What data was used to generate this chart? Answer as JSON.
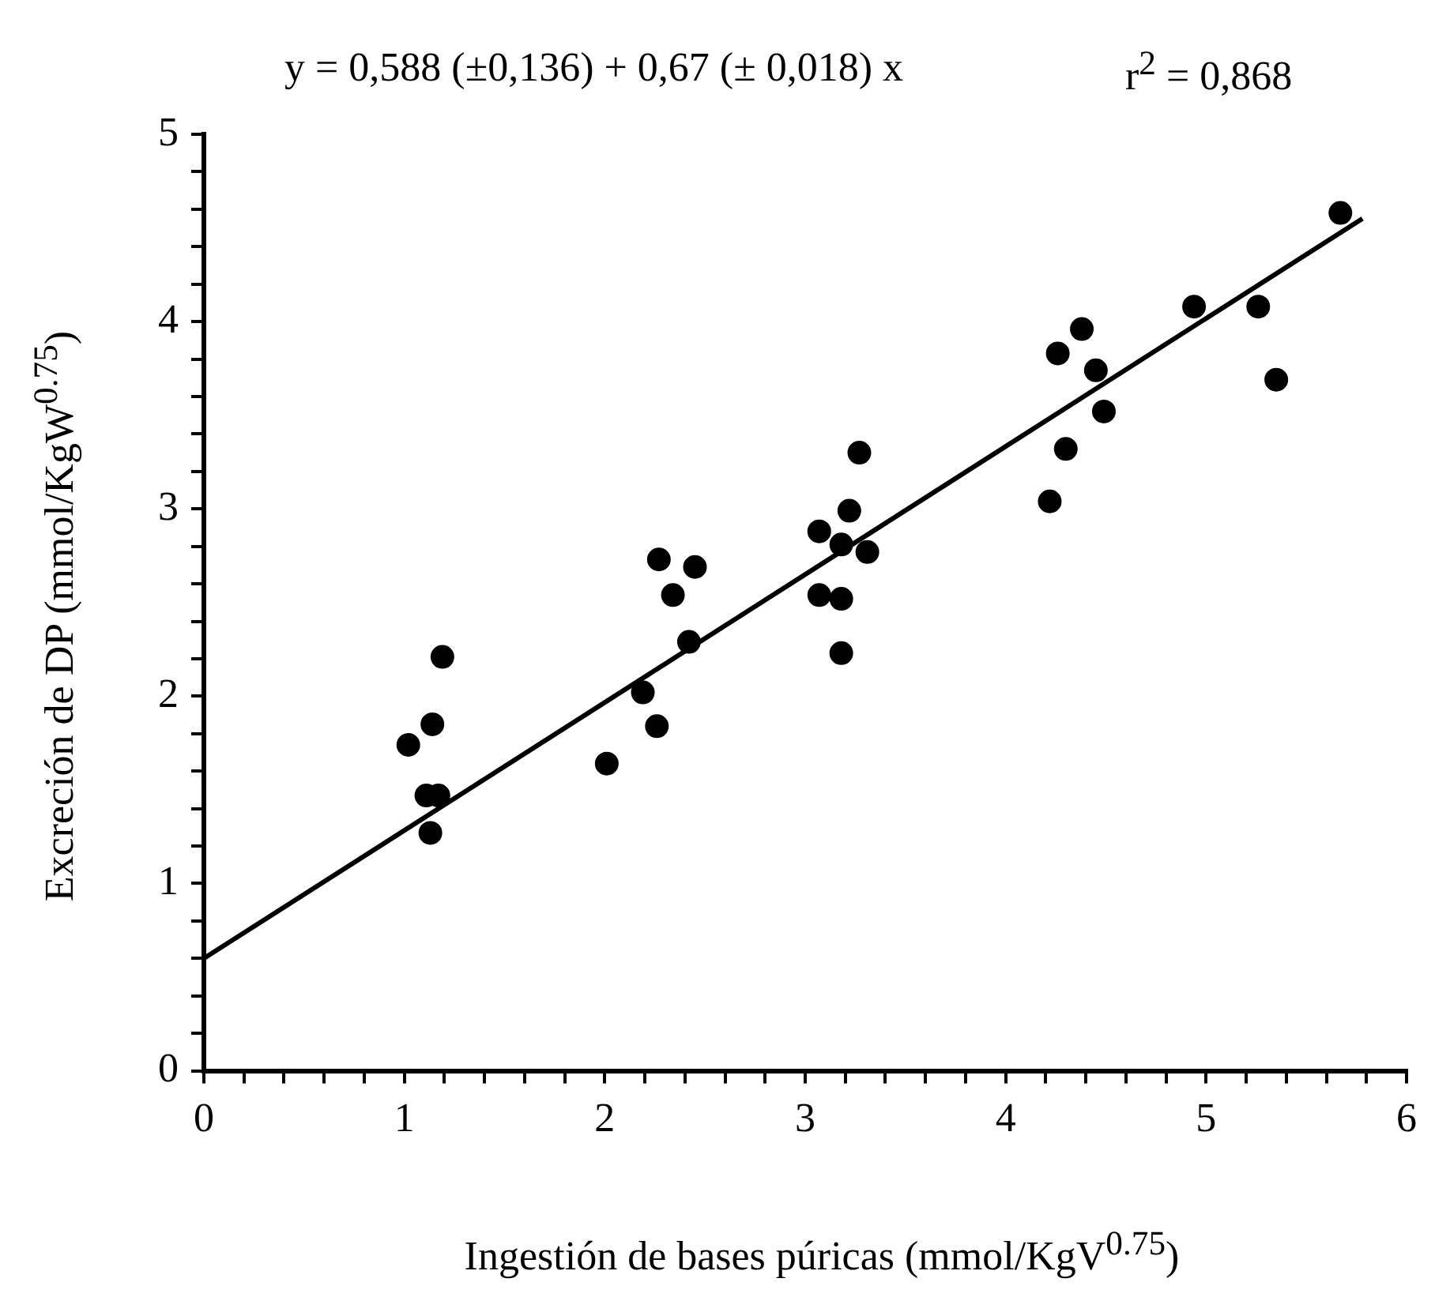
{
  "chart_data": {
    "type": "scatter",
    "xlabel": "Ingestión de bases púricas (mmol/KgV$^{0.75}$)",
    "ylabel": "Excreción de DP (mmol/KgW$^{0.75}$)",
    "annotations": [
      "y = 0,588 (±0,136) + 0,67 (± 0,018) x",
      "r$^{2}$ = 0,868"
    ],
    "grid": false,
    "legend": false,
    "xlim": [
      0,
      6
    ],
    "ylim": [
      0,
      5
    ],
    "xticks": [
      0,
      {
        "value": 0.2,
        "label": null
      },
      {
        "value": 0.4,
        "label": null
      },
      {
        "value": 0.6,
        "label": null
      },
      {
        "value": 0.8,
        "label": null
      },
      1,
      {
        "value": 1.2,
        "label": null
      },
      {
        "value": 1.4,
        "label": null
      },
      {
        "value": 1.6,
        "label": null
      },
      {
        "value": 1.8,
        "label": null
      },
      2,
      {
        "value": 2.2,
        "label": null
      },
      {
        "value": 2.4,
        "label": null
      },
      {
        "value": 2.6,
        "label": null
      },
      {
        "value": 2.8,
        "label": null
      },
      3,
      {
        "value": 3.2,
        "label": null
      },
      {
        "value": 3.4,
        "label": null
      },
      {
        "value": 3.6,
        "label": null
      },
      {
        "value": 3.8,
        "label": null
      },
      4,
      {
        "value": 4.2,
        "label": null
      },
      {
        "value": 4.4,
        "label": null
      },
      {
        "value": 4.6,
        "label": null
      },
      {
        "value": 4.8,
        "label": null
      },
      5,
      {
        "value": 5.2,
        "label": null
      },
      {
        "value": 5.4,
        "label": null
      },
      {
        "value": 5.6,
        "label": null
      },
      {
        "value": 5.8,
        "label": null
      },
      6
    ],
    "yticks": [
      0,
      {
        "value": 0.2,
        "label": null
      },
      {
        "value": 0.4,
        "label": null
      },
      {
        "value": 0.6,
        "label": null
      },
      {
        "value": 0.8,
        "label": null
      },
      1,
      {
        "value": 1.2,
        "label": null
      },
      {
        "value": 1.4,
        "label": null
      },
      {
        "value": 1.6,
        "label": null
      },
      {
        "value": 1.8,
        "label": null
      },
      2,
      {
        "value": 2.2,
        "label": null
      },
      {
        "value": 2.4,
        "label": null
      },
      {
        "value": 2.6,
        "label": null
      },
      {
        "value": 2.8,
        "label": null
      },
      3,
      {
        "value": 3.2,
        "label": null
      },
      {
        "value": 3.4,
        "label": null
      },
      {
        "value": 3.6,
        "label": null
      },
      {
        "value": 3.8,
        "label": null
      },
      4,
      {
        "value": 4.2,
        "label": null
      },
      {
        "value": 4.4,
        "label": null
      },
      {
        "value": 4.6,
        "label": null
      },
      {
        "value": 4.8,
        "label": null
      },
      5
    ],
    "series": [
      {
        "marker": "circle",
        "color": "#000000",
        "x": [
          1.02,
          1.11,
          1.13,
          1.14,
          1.17,
          1.19,
          2.01,
          2.19,
          2.26,
          2.27,
          2.34,
          2.42,
          2.45,
          3.07,
          3.07,
          3.18,
          3.18,
          3.18,
          3.22,
          3.27,
          3.31,
          4.22,
          4.26,
          4.3,
          4.38,
          4.45,
          4.49,
          4.94,
          5.26,
          5.35,
          5.67
        ],
        "values": [
          1.74,
          1.47,
          1.27,
          1.85,
          1.47,
          2.21,
          1.64,
          2.02,
          1.84,
          2.73,
          2.54,
          2.29,
          2.69,
          2.88,
          2.54,
          2.81,
          2.52,
          2.23,
          2.99,
          3.3,
          2.77,
          3.04,
          3.83,
          3.32,
          3.96,
          3.74,
          3.52,
          4.08,
          4.08,
          3.69,
          4.58
        ]
      },
      {
        "type": "line",
        "marker": "none",
        "color": "#000000",
        "x": [
          0,
          5.78
        ],
        "values": [
          0.6,
          4.55
        ]
      }
    ]
  }
}
